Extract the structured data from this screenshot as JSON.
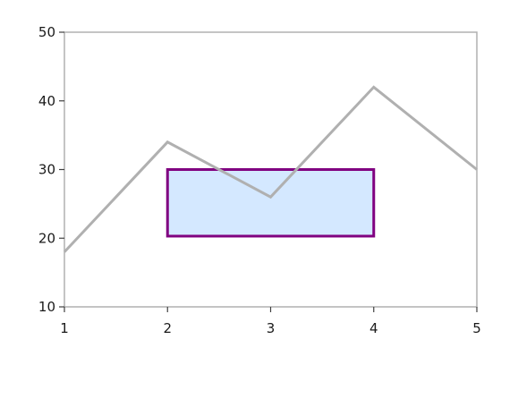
{
  "chart_data": {
    "type": "line",
    "title": "",
    "xlabel": "",
    "ylabel": "",
    "x": [
      1,
      2,
      3,
      4,
      5
    ],
    "series": [
      {
        "values": [
          18,
          34,
          26,
          42,
          30
        ],
        "color": "#b0b0b0"
      }
    ],
    "xlim": [
      1,
      5
    ],
    "ylim": [
      10,
      50
    ],
    "x_ticks": [
      1,
      2,
      3,
      4,
      5
    ],
    "y_ticks": [
      10,
      20,
      30,
      40,
      50
    ],
    "grid": false,
    "annotations": [
      {
        "type": "rectangle",
        "x_range": [
          2,
          4
        ],
        "y_range": [
          20.3,
          30
        ],
        "fill": "#d4e8ff",
        "stroke": "#800080"
      }
    ],
    "axis_color": "#b0b0b0"
  }
}
